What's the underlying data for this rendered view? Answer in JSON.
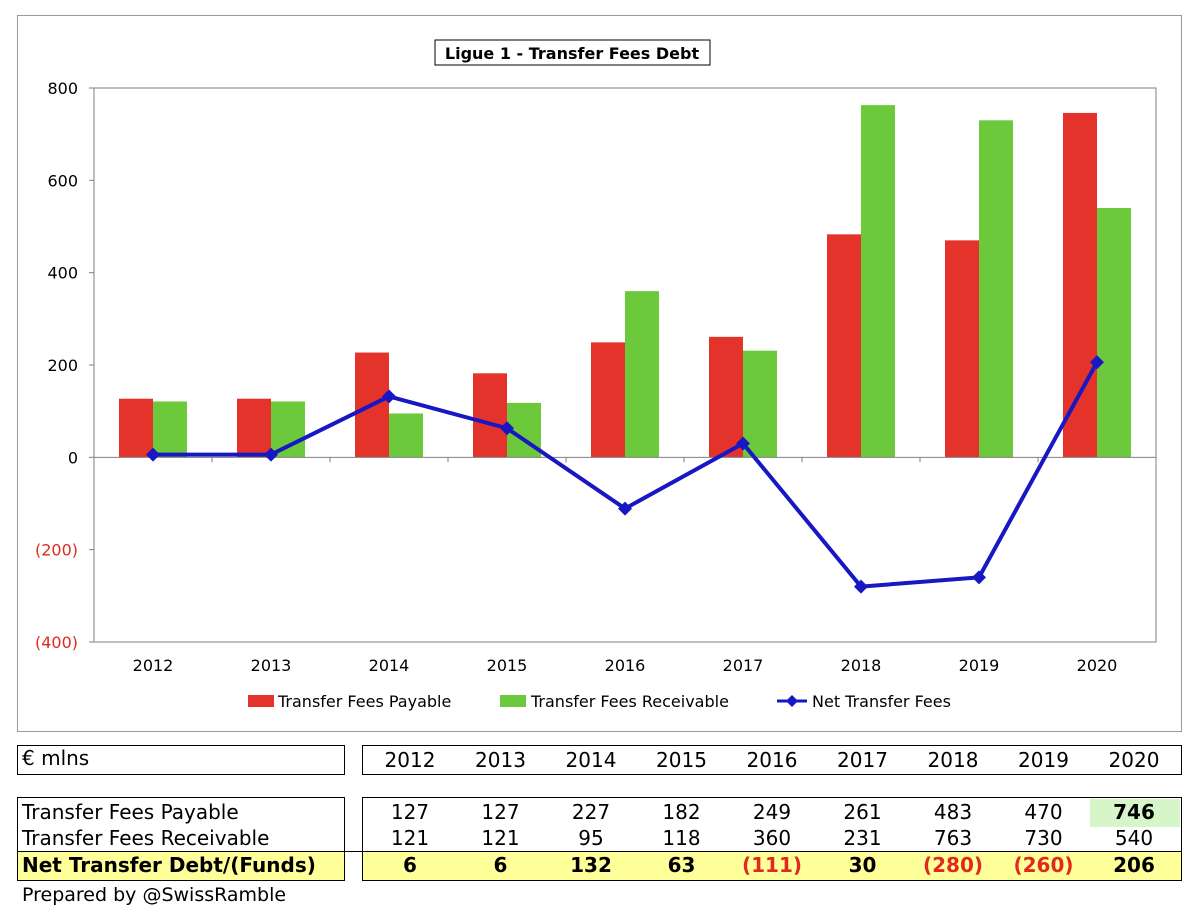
{
  "chart_data": {
    "type": "bar",
    "title": "Ligue 1 - Transfer Fees Debt",
    "categories": [
      "2012",
      "2013",
      "2014",
      "2015",
      "2016",
      "2017",
      "2018",
      "2019",
      "2020"
    ],
    "series": [
      {
        "name": "Transfer Fees Payable",
        "type": "bar",
        "color": "#e3332a",
        "values": [
          127,
          127,
          227,
          182,
          249,
          261,
          483,
          470,
          746
        ]
      },
      {
        "name": "Transfer Fees Receivable",
        "type": "bar",
        "color": "#6cc93c",
        "values": [
          121,
          121,
          95,
          118,
          360,
          231,
          763,
          730,
          540
        ]
      },
      {
        "name": "Net Transfer Fees",
        "type": "line",
        "color": "#1717c4",
        "marker": "diamond",
        "values": [
          6,
          6,
          132,
          63,
          -111,
          30,
          -280,
          -260,
          206
        ]
      }
    ],
    "ylim": [
      -400,
      800
    ],
    "yticks": [
      800,
      600,
      400,
      200,
      0,
      -200,
      -400
    ],
    "ytick_labels": [
      "800",
      "600",
      "400",
      "200",
      "0",
      "(200)",
      "(400)"
    ],
    "negative_tick_color": "#e02a1f",
    "grid": false,
    "legend": "bottom"
  },
  "table": {
    "unit_label": "€ mlns",
    "years": [
      "2012",
      "2013",
      "2014",
      "2015",
      "2016",
      "2017",
      "2018",
      "2019",
      "2020"
    ],
    "rows": [
      {
        "label": "Transfer Fees Payable",
        "values": [
          "127",
          "127",
          "227",
          "182",
          "249",
          "261",
          "483",
          "470",
          "746"
        ]
      },
      {
        "label": "Transfer Fees Receivable",
        "values": [
          "121",
          "121",
          "95",
          "118",
          "360",
          "231",
          "763",
          "730",
          "540"
        ]
      },
      {
        "label": "Net Transfer Debt/(Funds)",
        "values": [
          "6",
          "6",
          "132",
          "63",
          "(111)",
          "30",
          "(280)",
          "(260)",
          "206"
        ]
      }
    ],
    "highlight_color": "#ffff99",
    "highlight_cell_color": "#d6f5c9"
  },
  "footer": "Prepared by @SwissRamble"
}
